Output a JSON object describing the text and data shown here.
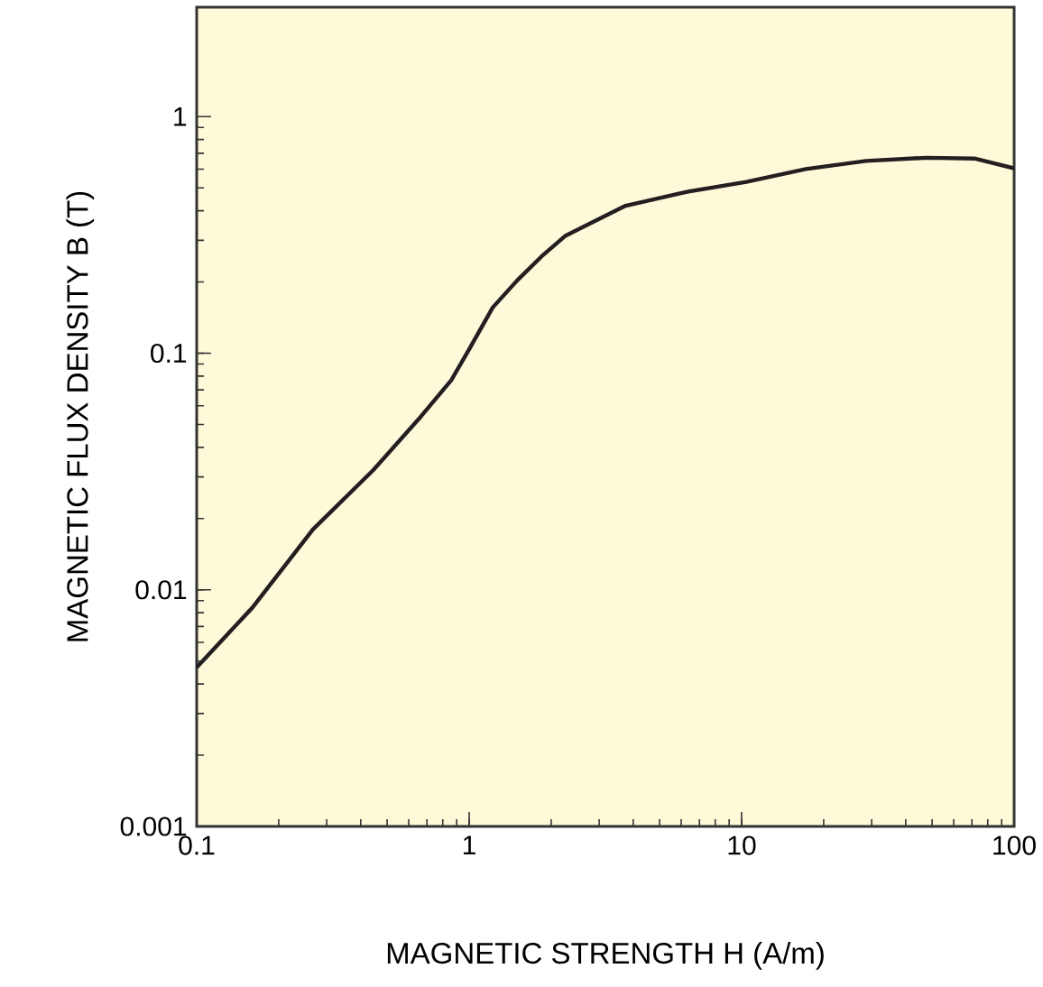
{
  "chart_data": {
    "type": "line",
    "xlabel": "MAGNETIC STRENGTH H (A/m)",
    "ylabel": "MAGNETIC FLUX DENSITY B (T)",
    "log": "xy",
    "xlim": [
      0.1,
      100
    ],
    "ylim": [
      0.001,
      2.9
    ],
    "xticks": [
      0.1,
      1,
      10,
      100
    ],
    "yticks": [
      0.001,
      0.01,
      0.1,
      1
    ],
    "series": [
      {
        "color": "#231f20",
        "x": [
          0.1,
          0.16,
          0.267,
          0.444,
          0.665,
          0.86,
          1.0,
          1.22,
          1.5,
          1.84,
          2.26,
          3.75,
          6.24,
          10.4,
          17.2,
          28.6,
          47.6,
          71.5,
          100
        ],
        "values": [
          0.0047,
          0.0084,
          0.018,
          0.032,
          0.054,
          0.077,
          0.104,
          0.156,
          0.203,
          0.256,
          0.314,
          0.42,
          0.48,
          0.53,
          0.6,
          0.65,
          0.67,
          0.665,
          0.605
        ]
      }
    ]
  }
}
